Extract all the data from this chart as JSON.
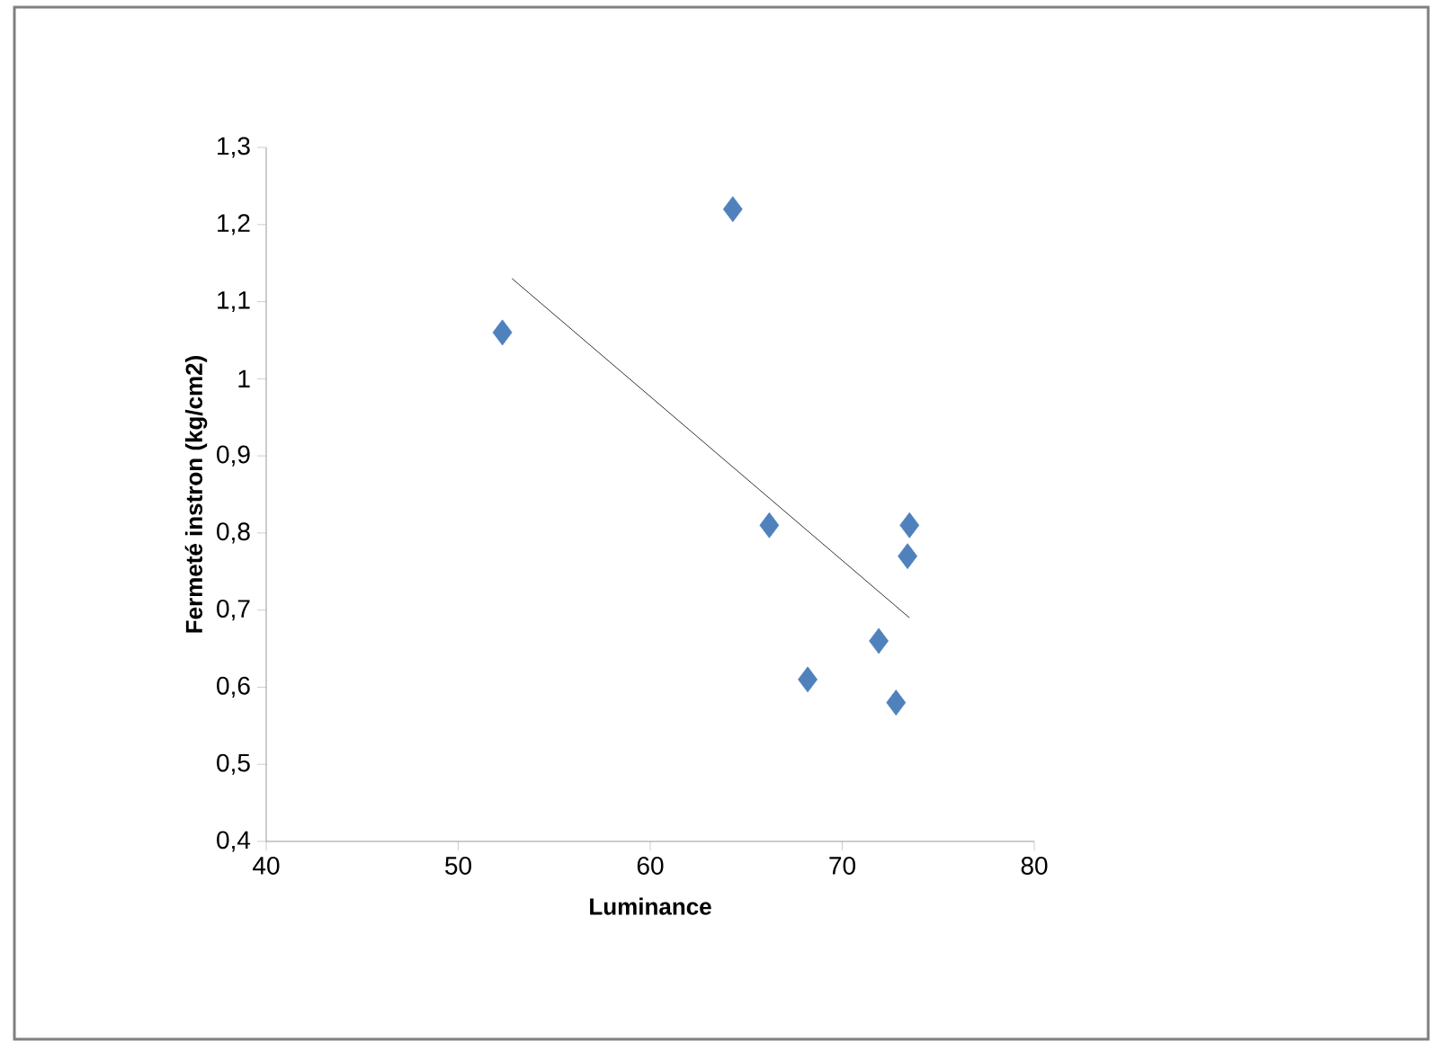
{
  "chart_data": {
    "type": "scatter",
    "xlabel": "Luminance",
    "ylabel": "Fermeté instron (kg/cm2)",
    "xlim": [
      40,
      80
    ],
    "xticks": [
      40,
      50,
      60,
      70,
      80
    ],
    "ylim": [
      0.4,
      1.3
    ],
    "yticks": [
      {
        "value": 0.4,
        "label": "0,4"
      },
      {
        "value": 0.5,
        "label": "0,5"
      },
      {
        "value": 0.6,
        "label": "0,6"
      },
      {
        "value": 0.7,
        "label": "0,7"
      },
      {
        "value": 0.8,
        "label": "0,8"
      },
      {
        "value": 0.9,
        "label": "0,9"
      },
      {
        "value": 1,
        "label": "1"
      },
      {
        "value": 1.1,
        "label": "1,1"
      },
      {
        "value": 1.2,
        "label": "1,2"
      },
      {
        "value": 1.3,
        "label": "1,3"
      }
    ],
    "grid": false,
    "series": [
      {
        "color": "#4f81bd",
        "marker": "diamond",
        "x": [
          52.3,
          64.3,
          66.2,
          68.2,
          71.9,
          72.8,
          73.4,
          73.5
        ],
        "values": [
          1.06,
          1.22,
          0.81,
          0.61,
          0.66,
          0.58,
          0.77,
          0.81
        ]
      },
      {
        "type": "line",
        "marker": "none",
        "color": "#000000",
        "x": [
          52.8,
          73.5
        ],
        "values": [
          1.13,
          0.69
        ]
      }
    ]
  }
}
